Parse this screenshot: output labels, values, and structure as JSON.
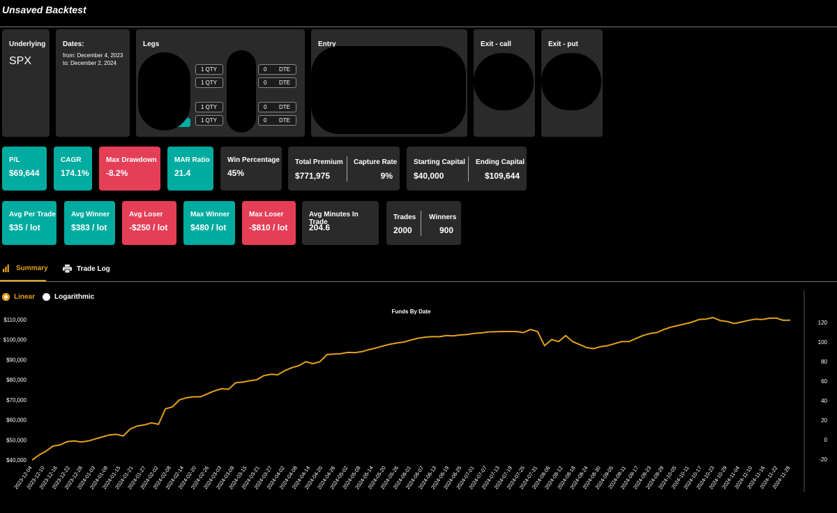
{
  "app": {
    "title": "Unsaved Backtest"
  },
  "config": {
    "underlying": {
      "label": "Underlying",
      "value": "SPX"
    },
    "dates": {
      "label": "Dates:",
      "from": "from: December 4, 2023",
      "to": "to: December 2, 2024"
    },
    "legs": {
      "label": "Legs",
      "rows": [
        {
          "qty": "1",
          "qty_unit": "QTY",
          "dte": "0",
          "dte_unit": "DTE"
        },
        {
          "qty": "1",
          "qty_unit": "QTY",
          "dte": "0",
          "dte_unit": "DTE"
        },
        {
          "qty": "1",
          "qty_unit": "QTY",
          "dte": "0",
          "dte_unit": "DTE"
        },
        {
          "qty": "1",
          "qty_unit": "QTY",
          "dte": "0",
          "dte_unit": "DTE"
        }
      ]
    },
    "entry": {
      "label": "Entry"
    },
    "exit_call": {
      "label": "Exit - call"
    },
    "exit_put": {
      "label": "Exit - put"
    }
  },
  "stats_row1": {
    "pl": {
      "label": "P/L",
      "value": "$69,644"
    },
    "cagr": {
      "label": "CAGR",
      "value": "174.1%"
    },
    "max_drawdown": {
      "label": "Max Drawdown",
      "value": "-8.2%"
    },
    "mar_ratio": {
      "label": "MAR Ratio",
      "value": "21.4"
    },
    "win_pct": {
      "label": "Win Percentage",
      "value": "45%"
    },
    "total_premium": {
      "label": "Total Premium",
      "value": "$771,975"
    },
    "capture_rate": {
      "label": "Capture Rate",
      "value": "9%"
    },
    "starting_capital": {
      "label": "Starting Capital",
      "value": "$40,000"
    },
    "ending_capital": {
      "label": "Ending Capital",
      "value": "$109,644"
    }
  },
  "stats_row2": {
    "avg_per_trade": {
      "label": "Avg Per Trade",
      "value": "$35 / lot"
    },
    "avg_winner": {
      "label": "Avg Winner",
      "value": "$383 / lot"
    },
    "avg_loser": {
      "label": "Avg Loser",
      "value": "-$250 / lot"
    },
    "max_winner": {
      "label": "Max Winner",
      "value": "$480 / lot"
    },
    "max_loser": {
      "label": "Max Loser",
      "value": "-$810 / lot"
    },
    "avg_minutes": {
      "label": "Avg Minutes In Trade",
      "value": "204.6"
    },
    "trades": {
      "label": "Trades",
      "value": "2000"
    },
    "winners": {
      "label": "Winners",
      "value": "900"
    }
  },
  "tabs": [
    {
      "label": "Summary",
      "icon": "bar-chart-icon",
      "active": true
    },
    {
      "label": "Trade Log",
      "icon": "printer-icon",
      "active": false
    }
  ],
  "scale_options": [
    {
      "label": "Linear",
      "selected": true
    },
    {
      "label": "Logarithmic",
      "selected": false
    }
  ],
  "colors": {
    "teal": "#00ab9f",
    "red": "#e53e57",
    "line": "#e3a21a",
    "card": "#2a2a2a"
  },
  "chart_data": {
    "type": "line",
    "title": "Funds By Date",
    "y_left": {
      "ticks": [
        40000,
        50000,
        60000,
        70000,
        80000,
        90000,
        100000,
        110000
      ],
      "tick_labels": [
        "$40,000",
        "$50,000",
        "$60,000",
        "$70,000",
        "$80,000",
        "$90,000",
        "$100,000",
        "$110,000"
      ],
      "range": [
        39000,
        112000
      ]
    },
    "y_right": {
      "ticks": [
        -20,
        0,
        20,
        40,
        60,
        80,
        100,
        120
      ],
      "range": [
        -23,
        127
      ]
    },
    "x_tick_labels": [
      "2023-12-04",
      "2023-12-10",
      "2023-12-16",
      "2023-12-22",
      "2023-12-28",
      "2024-01-03",
      "2024-01-09",
      "2024-01-15",
      "2024-01-21",
      "2024-01-27",
      "2024-02-02",
      "2024-02-08",
      "2024-02-14",
      "2024-02-20",
      "2024-02-26",
      "2024-03-03",
      "2024-03-09",
      "2024-03-15",
      "2024-03-21",
      "2024-03-27",
      "2024-04-02",
      "2024-04-08",
      "2024-04-14",
      "2024-04-20",
      "2024-04-26",
      "2024-05-02",
      "2024-05-08",
      "2024-05-14",
      "2024-05-20",
      "2024-05-26",
      "2024-06-01",
      "2024-06-07",
      "2024-06-13",
      "2024-06-19",
      "2024-06-25",
      "2024-07-01",
      "2024-07-07",
      "2024-07-13",
      "2024-07-19",
      "2024-07-25",
      "2024-07-31",
      "2024-08-06",
      "2024-08-12",
      "2024-08-18",
      "2024-08-24",
      "2024-08-30",
      "2024-09-05",
      "2024-09-11",
      "2024-09-17",
      "2024-09-23",
      "2024-09-29",
      "2024-10-05",
      "2024-10-11",
      "2024-10-17",
      "2024-10-23",
      "2024-10-29",
      "2024-11-04",
      "2024-11-10",
      "2024-11-16",
      "2024-11-22",
      "2024-11-28"
    ],
    "series": [
      {
        "values": [
          40000,
          42500,
          44500,
          47000,
          47500,
          49200,
          49500,
          49000,
          49500,
          50500,
          51500,
          52500,
          52800,
          52000,
          55500,
          57000,
          57500,
          58500,
          57800,
          65500,
          66500,
          70000,
          71000,
          71500,
          71500,
          73000,
          74500,
          75500,
          75300,
          78500,
          78800,
          79500,
          80000,
          82000,
          82700,
          82500,
          84500,
          86000,
          87000,
          89000,
          88000,
          89000,
          92500,
          92800,
          93000,
          93600,
          93500,
          94000,
          95000,
          95800,
          96800,
          97700,
          98300,
          98800,
          99800,
          100700,
          101200,
          101500,
          101400,
          102000,
          101800,
          102300,
          102500,
          103100,
          103300,
          103800,
          103900,
          104000,
          104000,
          104000,
          103500,
          105000,
          104000,
          97000,
          100000,
          99000,
          102000,
          99000,
          97500,
          96000,
          95500,
          96500,
          97000,
          98000,
          99000,
          99000,
          100500,
          102000,
          103000,
          103500,
          105000,
          106200,
          107000,
          107800,
          108700,
          110000,
          110200,
          111000,
          109500,
          109000,
          108000,
          108700,
          109500,
          110200,
          110000,
          110600,
          110700,
          109600,
          109644
        ],
        "color": "#e3a21a"
      }
    ],
    "grid": false,
    "legend": "none"
  }
}
